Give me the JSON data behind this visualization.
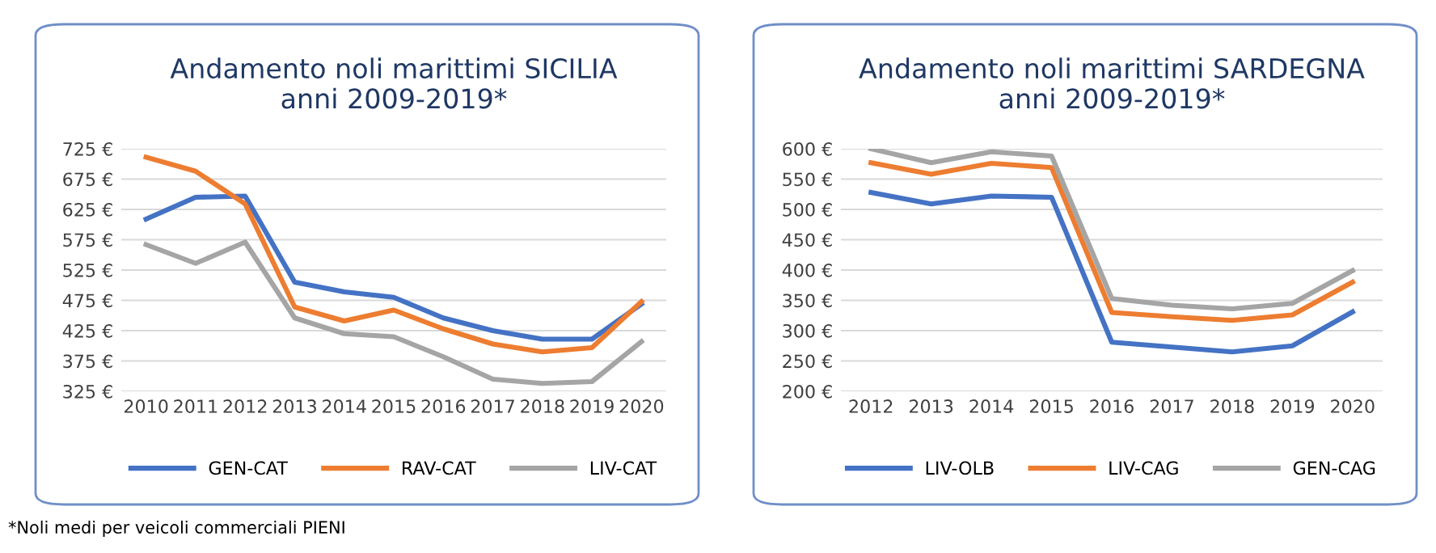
{
  "chart_data": [
    {
      "type": "line",
      "title": "Andamento noli marittimi SICILIA\nanni 2009-2019*",
      "categories": [
        "2010",
        "2011",
        "2012",
        "2013",
        "2014",
        "2015",
        "2016",
        "2017",
        "2018",
        "2019",
        "2020"
      ],
      "series": [
        {
          "name": "GEN-CAT",
          "color": "#4472c4",
          "values": [
            609,
            645,
            647,
            505,
            489,
            480,
            446,
            425,
            411,
            411,
            469
          ]
        },
        {
          "name": "RAV-CAT",
          "color": "#ed7d31",
          "values": [
            711,
            688,
            634,
            464,
            441,
            459,
            428,
            403,
            390,
            397,
            473
          ]
        },
        {
          "name": "LIV-CAT",
          "color": "#a5a5a5",
          "values": [
            567,
            536,
            571,
            446,
            420,
            415,
            382,
            345,
            338,
            341,
            407
          ]
        }
      ],
      "ylim": [
        325,
        725
      ],
      "yticks": [
        {
          "value": 325,
          "label": "325 €"
        },
        {
          "value": 375,
          "label": "375 €"
        },
        {
          "value": 425,
          "label": "425 €"
        },
        {
          "value": 475,
          "label": "475 €"
        },
        {
          "value": 525,
          "label": "525 €"
        },
        {
          "value": 575,
          "label": "575 €"
        },
        {
          "value": 625,
          "label": "625 €"
        },
        {
          "value": 675,
          "label": "675 €"
        },
        {
          "value": 725,
          "label": "725 €"
        }
      ],
      "grid": "y",
      "legend": "bottom",
      "marker": "none",
      "line_style": "solid",
      "annotations": [
        "*Noli medi per veicoli commerciali PIENI"
      ]
    },
    {
      "type": "line",
      "title": "Andamento noli marittimi SARDEGNA\nanni 2009-2019*",
      "categories": [
        "2012",
        "2013",
        "2014",
        "2015",
        "2016",
        "2017",
        "2018",
        "2019",
        "2020"
      ],
      "series": [
        {
          "name": "LIV-OLB",
          "color": "#4472c4",
          "values": [
            528,
            509,
            522,
            520,
            281,
            273,
            265,
            275,
            331
          ]
        },
        {
          "name": "LIV-CAG",
          "color": "#ed7d31",
          "values": [
            577,
            558,
            576,
            569,
            330,
            323,
            317,
            326,
            380
          ]
        },
        {
          "name": "GEN-CAG",
          "color": "#a5a5a5",
          "values": [
            600,
            577,
            595,
            588,
            353,
            342,
            336,
            345,
            399
          ]
        }
      ],
      "ylim": [
        200,
        600
      ],
      "yticks": [
        {
          "value": 200,
          "label": "200 €"
        },
        {
          "value": 250,
          "label": "250 €"
        },
        {
          "value": 300,
          "label": "300 €"
        },
        {
          "value": 350,
          "label": "350 €"
        },
        {
          "value": 400,
          "label": "400 €"
        },
        {
          "value": 450,
          "label": "450 €"
        },
        {
          "value": 500,
          "label": "500 €"
        },
        {
          "value": 550,
          "label": "550 €"
        },
        {
          "value": 600,
          "label": "600 €"
        }
      ],
      "grid": "y",
      "legend": "bottom",
      "marker": "none",
      "line_style": "solid"
    }
  ]
}
